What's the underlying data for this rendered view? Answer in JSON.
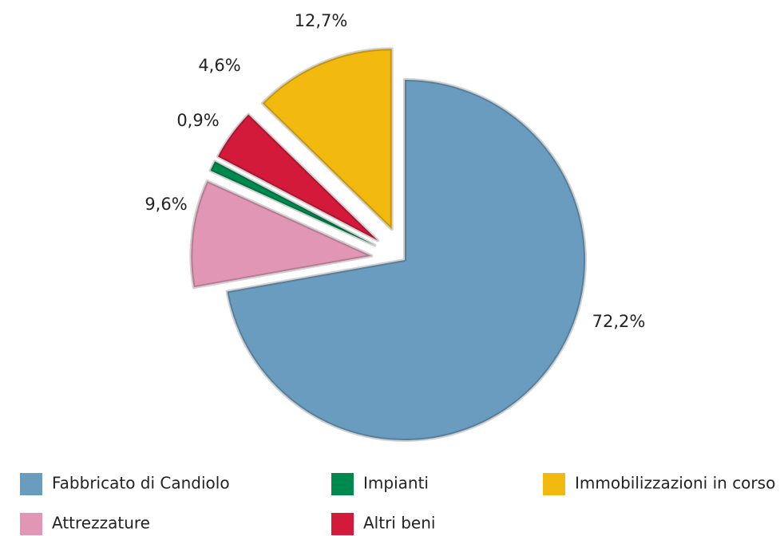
{
  "chart_data": {
    "type": "pie",
    "categories": [
      "Fabbricato di Candiolo",
      "Attrezzature",
      "Impianti",
      "Altri beni",
      "Immobilizzazioni in corso"
    ],
    "values": [
      72.2,
      9.6,
      0.9,
      4.6,
      12.7
    ],
    "value_labels": [
      "72,2%",
      "9,6%",
      "0,9%",
      "4,6%",
      "12,7%"
    ],
    "colors": [
      "#6a9cbf",
      "#e096b4",
      "#00894f",
      "#d41a3a",
      "#f2b90f"
    ],
    "exploded": [
      false,
      true,
      true,
      true,
      true
    ]
  }
}
